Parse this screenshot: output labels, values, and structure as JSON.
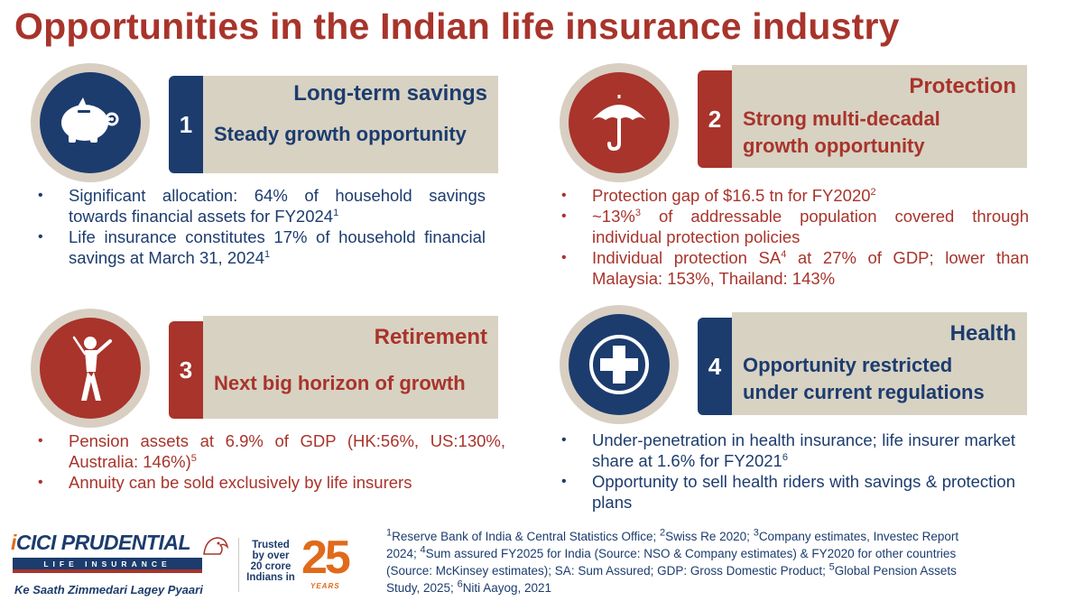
{
  "title": "Opportunities in the Indian life insurance industry",
  "colors": {
    "navy": "#1c3c6e",
    "maroon": "#a8342b",
    "beige": "#d8d2c3",
    "orange": "#e06a1a"
  },
  "cards": [
    {
      "number": "1",
      "icon": "piggy-bank-icon",
      "heading": "Long-term savings",
      "subtitle": "Steady growth opportunity",
      "bullets": [
        {
          "text": "Significant allocation: 64% of household savings towards financial assets for FY2024",
          "sup": "1"
        },
        {
          "text": "Life insurance constitutes 17% of household financial savings at March 31, 2024",
          "sup": "1"
        }
      ]
    },
    {
      "number": "2",
      "icon": "umbrella-icon",
      "heading": "Protection",
      "subtitle_line1": "Strong multi-decadal",
      "subtitle_line2": "growth opportunity",
      "bullets": [
        {
          "text": "Protection gap of $16.5 tn for FY2020",
          "sup": "2"
        },
        {
          "pre": "~13%",
          "sup": "3",
          "text": " of addressable population covered through individual protection policies"
        },
        {
          "pre": "Individual protection SA",
          "sup": "4",
          "text": " at 27% of GDP; lower than Malaysia: 153%, Thailand: 143%"
        }
      ]
    },
    {
      "number": "3",
      "icon": "golfer-icon",
      "heading": "Retirement",
      "subtitle": "Next big horizon of growth",
      "bullets": [
        {
          "text": "Pension assets at 6.9% of GDP (HK:56%, US:130%, Australia: 146%)",
          "sup": "5"
        },
        {
          "text": "Annuity can be sold exclusively by life insurers"
        }
      ]
    },
    {
      "number": "4",
      "icon": "medical-cross-icon",
      "heading": "Health",
      "subtitle_line1": "Opportunity restricted",
      "subtitle_line2": "under current regulations",
      "bullets": [
        {
          "text": "Under-penetration in health insurance; life insurer market share at 1.6% for FY2021",
          "sup": "6"
        },
        {
          "text": "Opportunity to sell health riders with savings & protection plans"
        }
      ]
    }
  ],
  "footnotes": {
    "s1": "1",
    "t1": "Reserve Bank of India & Central Statistics Office; ",
    "s2": "2",
    "t2": "Swiss Re 2020; ",
    "s3": "3",
    "t3": "Company estimates, Investec Report 2024; ",
    "s4": "4",
    "t4": "Sum assured FY2025 for India (Source: NSO & Company estimates) & FY2020 for other countries (Source: McKinsey estimates); SA: Sum Assured; GDP: Gross Domestic Product; ",
    "s5": "5",
    "t5": "Global Pension Assets Study, 2025; ",
    "s6": "6",
    "t6": "Niti Aayog, 2021"
  },
  "logo": {
    "brand_i": "i",
    "brand_rest": "CICI PRUDENTIAL",
    "band": "LIFE INSURANCE",
    "tagline": "Ke Saath Zimmedari Lagey Pyaari",
    "trusted": "Trusted by over 20 crore Indians in",
    "anniversary": "25",
    "years": "YEARS"
  }
}
